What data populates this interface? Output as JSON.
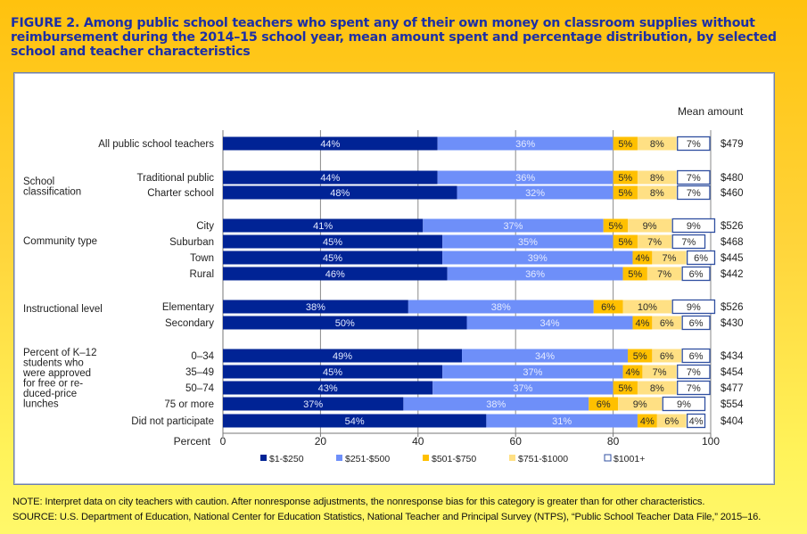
{
  "title": "FIGURE 2. Among public school teachers who spent any of their own money on classroom supplies without reimbursement during the 2014–15 school year, mean amount spent and percentage distribution, by selected school and teacher characteristics",
  "note": "NOTE: Interpret data on city teachers with caution. After nonresponse adjustments, the nonresponse bias for this category is greater than for other characteristics.",
  "source": "SOURCE: U.S. Department of Education, National Center for Education Statistics, National Teacher and Principal Survey (NTPS), “Public School Teacher Data File,” 2015–16.",
  "chart_data": {
    "type": "bar",
    "orientation": "horizontal",
    "stacked": true,
    "xlabel": "Percent",
    "xlim": [
      0,
      100
    ],
    "xticks": [
      0,
      20,
      40,
      60,
      80,
      100
    ],
    "grid": true,
    "mean_header": "Mean amount",
    "legend_position": "bottom",
    "series": [
      {
        "name": "$1-$250",
        "color": "#002395"
      },
      {
        "name": "$251-$500",
        "color": "#6e8ff9"
      },
      {
        "name": "$501-$750",
        "color": "#ffc000"
      },
      {
        "name": "$751-$1000",
        "color": "#ffe084"
      },
      {
        "name": "$1001+",
        "color": "#ffffff",
        "border": "#2f4fa0"
      }
    ],
    "groups": [
      {
        "label": "",
        "rows": [
          {
            "label": "All public school teachers",
            "values": [
              44,
              36,
              5,
              8,
              7
            ],
            "mean": "$479"
          }
        ]
      },
      {
        "label": "School classification",
        "rows": [
          {
            "label": "Traditional public",
            "values": [
              44,
              36,
              5,
              8,
              7
            ],
            "mean": "$480"
          },
          {
            "label": "Charter school",
            "values": [
              48,
              32,
              5,
              8,
              7
            ],
            "mean": "$460"
          }
        ]
      },
      {
        "label": "Community type",
        "rows": [
          {
            "label": "City",
            "values": [
              41,
              37,
              5,
              9,
              9
            ],
            "mean": "$526"
          },
          {
            "label": "Suburban",
            "values": [
              45,
              35,
              5,
              7,
              7
            ],
            "mean": "$468"
          },
          {
            "label": "Town",
            "values": [
              45,
              39,
              4,
              7,
              6
            ],
            "mean": "$445"
          },
          {
            "label": "Rural",
            "values": [
              46,
              36,
              5,
              7,
              6
            ],
            "mean": "$442"
          }
        ]
      },
      {
        "label": "Instructional level",
        "rows": [
          {
            "label": "Elementary",
            "values": [
              38,
              38,
              6,
              10,
              9
            ],
            "mean": "$526"
          },
          {
            "label": "Secondary",
            "values": [
              50,
              34,
              4,
              6,
              6
            ],
            "mean": "$430"
          }
        ]
      },
      {
        "label": "Percent of K–12 students who were approved for free or re- duced-price lunches",
        "label_lines": [
          "Percent of K–12",
          "students who",
          "were approved",
          "for free or re-",
          "duced-price",
          "lunches"
        ],
        "rows": [
          {
            "label": "0–34",
            "values": [
              49,
              34,
              5,
              6,
              6
            ],
            "mean": "$434"
          },
          {
            "label": "35–49",
            "values": [
              45,
              37,
              4,
              7,
              7
            ],
            "mean": "$454"
          },
          {
            "label": "50–74",
            "values": [
              43,
              37,
              5,
              8,
              7
            ],
            "mean": "$477"
          },
          {
            "label": "75 or more",
            "values": [
              37,
              38,
              6,
              9,
              9
            ],
            "mean": "$554"
          },
          {
            "label": "Did not participate",
            "values": [
              54,
              31,
              4,
              6,
              4
            ],
            "mean": "$404"
          }
        ]
      }
    ]
  }
}
